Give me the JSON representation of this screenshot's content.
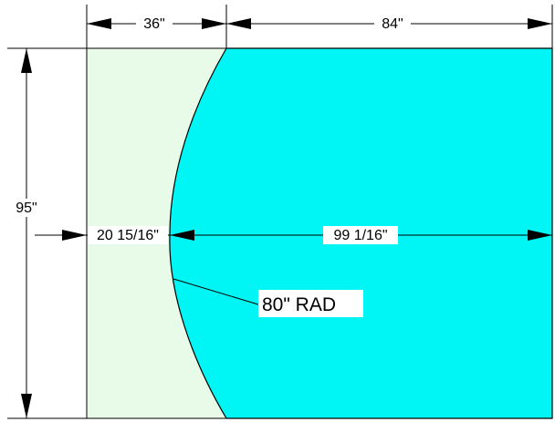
{
  "colors": {
    "left_panel": "#e8fae8",
    "right_panel": "#00f5f5",
    "outline": "#000000",
    "background": "#ffffff"
  },
  "dimensions": {
    "top_left_width": "36\"",
    "top_right_width": "84\"",
    "overall_height": "95\"",
    "inner_left_width": "20 15/16\"",
    "inner_right_width": "99 1/16\""
  },
  "radius_label": "80\" RAD"
}
